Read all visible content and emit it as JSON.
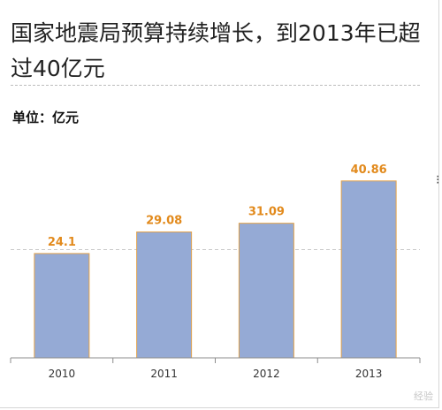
{
  "title": "国家地震局预算持续增长，到2013年已超过40亿元",
  "unit_label": "单位：亿元",
  "colors": {
    "bar_fill": "#95aad5",
    "bar_stroke": "#e2a24a",
    "value_label": "#e28a1c",
    "axis": "#8c8c8c",
    "gridline": "#c8c8c8"
  },
  "chart_data": {
    "type": "bar",
    "title": "国家地震局预算持续增长，到2013年已超过40亿元",
    "unit": "单位：亿元",
    "categories": [
      "2010",
      "2011",
      "2012",
      "2013"
    ],
    "values": [
      24.1,
      29.08,
      31.09,
      40.86
    ],
    "value_labels": [
      "24.1",
      "29.08",
      "31.09",
      "40.86"
    ],
    "ylim": [
      0,
      50
    ],
    "gridlines": [
      25
    ],
    "grid": true,
    "legend": "none"
  },
  "watermark": "经验"
}
